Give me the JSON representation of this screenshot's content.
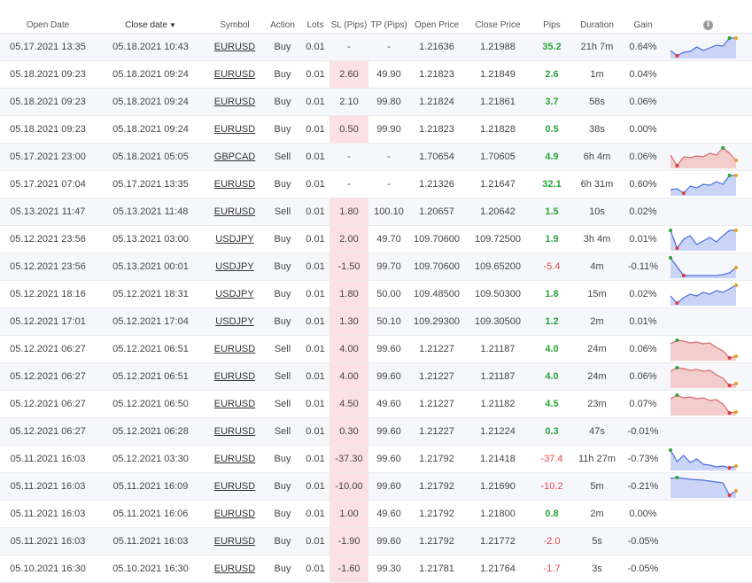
{
  "headers": {
    "open_date": "Open Date",
    "close_date": "Close date",
    "symbol": "Symbol",
    "action": "Action",
    "lots": "Lots",
    "sl": "SL (Pips)",
    "tp": "TP (Pips)",
    "open_price": "Open Price",
    "close_price": "Close Price",
    "pips": "Pips",
    "duration": "Duration",
    "gain": "Gain"
  },
  "colors": {
    "up_line": "#4a6ee0",
    "up_fill": "#c9d4f7",
    "down_line": "#d96a6a",
    "down_fill": "#f3cccc",
    "start_dot": "#2aa33a",
    "end_dot": "#f0a020",
    "low_dot": "#e03a3a"
  },
  "rows": [
    {
      "open": "05.17.2021 13:35",
      "close": "05.18.2021 10:43",
      "symbol": "EURUSD",
      "action": "Buy",
      "lots": "0.01",
      "sl": "-",
      "tp": "-",
      "open_price": "1.21636",
      "close_price": "1.21988",
      "pips": "35.2",
      "duration": "21h 7m",
      "gain": "0.64%",
      "sl_hi": false,
      "spark": {
        "trend": "up",
        "points": [
          0.3,
          0.0,
          0.2,
          0.25,
          0.5,
          0.3,
          0.45,
          0.6,
          0.55,
          1.0,
          1.0
        ]
      }
    },
    {
      "open": "05.18.2021 09:23",
      "close": "05.18.2021 09:24",
      "symbol": "EURUSD",
      "action": "Buy",
      "lots": "0.01",
      "sl": "2.60",
      "tp": "49.90",
      "open_price": "1.21823",
      "close_price": "1.21849",
      "pips": "2.6",
      "duration": "1m",
      "gain": "0.04%",
      "sl_hi": true,
      "spark": null
    },
    {
      "open": "05.18.2021 09:23",
      "close": "05.18.2021 09:24",
      "symbol": "EURUSD",
      "action": "Buy",
      "lots": "0.01",
      "sl": "2.10",
      "tp": "99.80",
      "open_price": "1.21824",
      "close_price": "1.21861",
      "pips": "3.7",
      "duration": "58s",
      "gain": "0.06%",
      "sl_hi": false,
      "spark": null
    },
    {
      "open": "05.18.2021 09:23",
      "close": "05.18.2021 09:24",
      "symbol": "EURUSD",
      "action": "Buy",
      "lots": "0.01",
      "sl": "0.50",
      "tp": "99.90",
      "open_price": "1.21823",
      "close_price": "1.21828",
      "pips": "0.5",
      "duration": "38s",
      "gain": "0.00%",
      "sl_hi": true,
      "spark": null
    },
    {
      "open": "05.17.2021 23:00",
      "close": "05.18.2021 05:05",
      "symbol": "GBPCAD",
      "action": "Sell",
      "lots": "0.01",
      "sl": "-",
      "tp": "-",
      "open_price": "1.70654",
      "close_price": "1.70605",
      "pips": "4.9",
      "duration": "6h 4m",
      "gain": "0.06%",
      "sl_hi": false,
      "spark": {
        "trend": "down",
        "points": [
          0.6,
          0.0,
          0.5,
          0.45,
          0.55,
          0.5,
          0.7,
          0.6,
          1.0,
          0.7,
          0.3
        ]
      }
    },
    {
      "open": "05.17.2021 07:04",
      "close": "05.17.2021 13:35",
      "symbol": "EURUSD",
      "action": "Buy",
      "lots": "0.01",
      "sl": "-",
      "tp": "-",
      "open_price": "1.21326",
      "close_price": "1.21647",
      "pips": "32.1",
      "duration": "6h 31m",
      "gain": "0.60%",
      "sl_hi": false,
      "spark": {
        "trend": "up",
        "points": [
          0.2,
          0.25,
          0.0,
          0.4,
          0.3,
          0.5,
          0.45,
          0.65,
          0.5,
          1.0,
          1.0
        ]
      }
    },
    {
      "open": "05.13.2021 11:47",
      "close": "05.13.2021 11:48",
      "symbol": "EURUSD",
      "action": "Sell",
      "lots": "0.01",
      "sl": "1.80",
      "tp": "100.10",
      "open_price": "1.20657",
      "close_price": "1.20642",
      "pips": "1.5",
      "duration": "10s",
      "gain": "0.02%",
      "sl_hi": true,
      "spark": null
    },
    {
      "open": "05.12.2021 23:56",
      "close": "05.13.2021 03:00",
      "symbol": "USDJPY",
      "action": "Buy",
      "lots": "0.01",
      "sl": "2.00",
      "tp": "49.70",
      "open_price": "109.70600",
      "close_price": "109.72500",
      "pips": "1.9",
      "duration": "3h 4m",
      "gain": "0.01%",
      "sl_hi": true,
      "spark": {
        "trend": "up",
        "points": [
          1.0,
          0.0,
          0.5,
          0.7,
          0.2,
          0.4,
          0.6,
          0.35,
          0.7,
          1.0,
          1.0
        ]
      }
    },
    {
      "open": "05.12.2021 23:56",
      "close": "05.13.2021 00:01",
      "symbol": "USDJPY",
      "action": "Buy",
      "lots": "0.01",
      "sl": "-1.50",
      "tp": "99.70",
      "open_price": "109.70600",
      "close_price": "109.65200",
      "pips": "-5.4",
      "duration": "4m",
      "gain": "-0.11%",
      "sl_hi": true,
      "spark": {
        "trend": "up",
        "points": [
          1.0,
          0.5,
          0.0,
          0.0,
          0.0,
          0.0,
          0.0,
          0.0,
          0.05,
          0.15,
          0.45
        ]
      }
    },
    {
      "open": "05.12.2021 18:16",
      "close": "05.12.2021 18:31",
      "symbol": "USDJPY",
      "action": "Buy",
      "lots": "0.01",
      "sl": "1.80",
      "tp": "50.00",
      "open_price": "109.48500",
      "close_price": "109.50300",
      "pips": "1.8",
      "duration": "15m",
      "gain": "0.02%",
      "sl_hi": true,
      "spark": {
        "trend": "up",
        "points": [
          0.4,
          0.0,
          0.3,
          0.5,
          0.4,
          0.6,
          0.5,
          0.7,
          0.6,
          0.8,
          1.0
        ]
      }
    },
    {
      "open": "05.12.2021 17:01",
      "close": "05.12.2021 17:04",
      "symbol": "USDJPY",
      "action": "Buy",
      "lots": "0.01",
      "sl": "1.30",
      "tp": "50.10",
      "open_price": "109.29300",
      "close_price": "109.30500",
      "pips": "1.2",
      "duration": "2m",
      "gain": "0.01%",
      "sl_hi": true,
      "spark": null
    },
    {
      "open": "05.12.2021 06:27",
      "close": "05.12.2021 06:51",
      "symbol": "EURUSD",
      "action": "Sell",
      "lots": "0.01",
      "sl": "4.00",
      "tp": "99.60",
      "open_price": "1.21227",
      "close_price": "1.21187",
      "pips": "4.0",
      "duration": "24m",
      "gain": "0.06%",
      "sl_hi": true,
      "spark": {
        "trend": "down",
        "points": [
          0.8,
          1.0,
          0.95,
          0.85,
          0.9,
          0.8,
          0.85,
          0.6,
          0.4,
          0.0,
          0.1
        ]
      }
    },
    {
      "open": "05.12.2021 06:27",
      "close": "05.12.2021 06:51",
      "symbol": "EURUSD",
      "action": "Sell",
      "lots": "0.01",
      "sl": "4.00",
      "tp": "99.60",
      "open_price": "1.21227",
      "close_price": "1.21187",
      "pips": "4.0",
      "duration": "24m",
      "gain": "0.06%",
      "sl_hi": true,
      "spark": {
        "trend": "down",
        "points": [
          0.8,
          1.0,
          0.95,
          0.85,
          0.9,
          0.8,
          0.85,
          0.6,
          0.4,
          0.0,
          0.1
        ]
      }
    },
    {
      "open": "05.12.2021 06:27",
      "close": "05.12.2021 06:50",
      "symbol": "EURUSD",
      "action": "Sell",
      "lots": "0.01",
      "sl": "4.50",
      "tp": "49.60",
      "open_price": "1.21227",
      "close_price": "1.21182",
      "pips": "4.5",
      "duration": "23m",
      "gain": "0.07%",
      "sl_hi": true,
      "spark": {
        "trend": "down",
        "points": [
          0.8,
          1.0,
          0.85,
          0.9,
          0.8,
          0.85,
          0.7,
          0.75,
          0.5,
          0.0,
          0.05
        ]
      }
    },
    {
      "open": "05.12.2021 06:27",
      "close": "05.12.2021 06:28",
      "symbol": "EURUSD",
      "action": "Sell",
      "lots": "0.01",
      "sl": "0.30",
      "tp": "99.60",
      "open_price": "1.21227",
      "close_price": "1.21224",
      "pips": "0.3",
      "duration": "47s",
      "gain": "-0.01%",
      "sl_hi": true,
      "spark": null
    },
    {
      "open": "05.11.2021 16:03",
      "close": "05.12.2021 03:30",
      "symbol": "EURUSD",
      "action": "Buy",
      "lots": "0.01",
      "sl": "-37.30",
      "tp": "99.60",
      "open_price": "1.21792",
      "close_price": "1.21418",
      "pips": "-37.4",
      "duration": "11h 27m",
      "gain": "-0.73%",
      "sl_hi": true,
      "spark": {
        "trend": "up",
        "points": [
          1.0,
          0.35,
          0.7,
          0.3,
          0.5,
          0.2,
          0.15,
          0.05,
          0.1,
          0.0,
          0.1
        ]
      }
    },
    {
      "open": "05.11.2021 16:03",
      "close": "05.11.2021 16:09",
      "symbol": "EURUSD",
      "action": "Buy",
      "lots": "0.01",
      "sl": "-10.00",
      "tp": "99.60",
      "open_price": "1.21792",
      "close_price": "1.21690",
      "pips": "-10.2",
      "duration": "5m",
      "gain": "-0.21%",
      "sl_hi": true,
      "spark": {
        "trend": "up",
        "points": [
          0.95,
          1.0,
          0.95,
          0.9,
          0.88,
          0.85,
          0.8,
          0.75,
          0.7,
          0.0,
          0.25
        ]
      }
    },
    {
      "open": "05.11.2021 16:03",
      "close": "05.11.2021 16:06",
      "symbol": "EURUSD",
      "action": "Buy",
      "lots": "0.01",
      "sl": "1.00",
      "tp": "49.60",
      "open_price": "1.21792",
      "close_price": "1.21800",
      "pips": "0.8",
      "duration": "2m",
      "gain": "0.00%",
      "sl_hi": true,
      "spark": null
    },
    {
      "open": "05.11.2021 16:03",
      "close": "05.11.2021 16:03",
      "symbol": "EURUSD",
      "action": "Buy",
      "lots": "0.01",
      "sl": "-1.90",
      "tp": "99.60",
      "open_price": "1.21792",
      "close_price": "1.21772",
      "pips": "-2.0",
      "duration": "5s",
      "gain": "-0.05%",
      "sl_hi": true,
      "spark": null
    },
    {
      "open": "05.10.2021 16:30",
      "close": "05.10.2021 16:30",
      "symbol": "EURUSD",
      "action": "Buy",
      "lots": "0.01",
      "sl": "-1.60",
      "tp": "99.30",
      "open_price": "1.21781",
      "close_price": "1.21764",
      "pips": "-1.7",
      "duration": "3s",
      "gain": "-0.05%",
      "sl_hi": true,
      "spark": null
    }
  ]
}
